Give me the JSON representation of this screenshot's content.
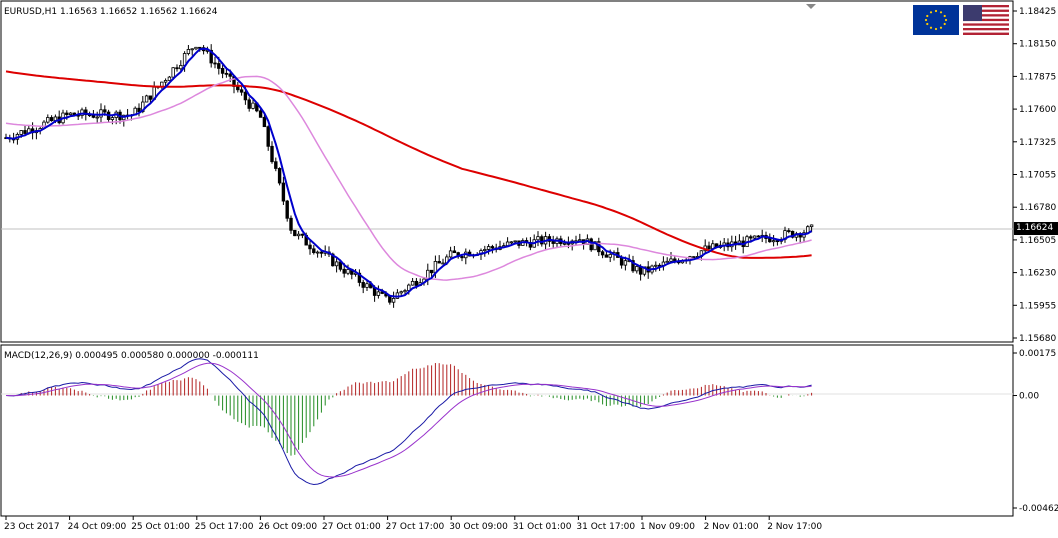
{
  "main_panel": {
    "header": "EURUSD,H1  1.16563 1.16652 1.16562 1.16624",
    "last_price": "1.16624",
    "price_axis": [
      "1.18425",
      "1.18150",
      "1.17875",
      "1.17600",
      "1.17325",
      "1.17055",
      "1.16780",
      "1.16505",
      "1.16230",
      "1.15955",
      "1.15680"
    ],
    "price_range": [
      1.1568,
      1.1852
    ]
  },
  "macd_panel": {
    "header": "MACD(12,26,9) 0.000495 0.000580 0.000000 -0.000111",
    "axis": [
      "0.00175",
      "0.00",
      "-0.004628"
    ],
    "range": [
      -0.004628,
      0.00175
    ]
  },
  "time_axis": [
    "23 Oct 2017",
    "24 Oct 09:00",
    "25 Oct 01:00",
    "25 Oct 17:00",
    "26 Oct 09:00",
    "27 Oct 01:00",
    "27 Oct 17:00",
    "30 Oct 09:00",
    "31 Oct 01:00",
    "31 Oct 17:00",
    "1 Nov 09:00",
    "2 Nov 01:00",
    "2 Nov 17:00"
  ],
  "flags": {
    "base": "EUR",
    "quote": "USD"
  },
  "colors": {
    "candles": "#000000",
    "fast_ma": "#0000cc",
    "slow_ma": "#dd0000",
    "mid_ma": "#dd88dd",
    "macd_line": "#1a1aa6",
    "signal_line": "#9933cc",
    "hist_pos": "#b22222",
    "hist_neg": "#228b22"
  },
  "chart_data": {
    "type": "candlestick",
    "symbol": "EURUSD",
    "timeframe": "H1",
    "ohlc_last": {
      "open": 1.16563,
      "high": 1.16652,
      "low": 1.16562,
      "close": 1.16624
    },
    "close_path_keypoints": [
      {
        "t": "23 Oct 2017",
        "price": 1.1742
      },
      {
        "t": "24 Oct 09:00",
        "price": 1.1762
      },
      {
        "t": "25 Oct 01:00",
        "price": 1.1762
      },
      {
        "t": "25 Oct 17:00",
        "price": 1.1825
      },
      {
        "t": "26 Oct 09:00",
        "price": 1.176
      },
      {
        "t": "26 Oct 17:00",
        "price": 1.166
      },
      {
        "t": "27 Oct 01:00",
        "price": 1.164
      },
      {
        "t": "27 Oct 17:00",
        "price": 1.16
      },
      {
        "t": "30 Oct 09:00",
        "price": 1.164
      },
      {
        "t": "31 Oct 01:00",
        "price": 1.165
      },
      {
        "t": "31 Oct 17:00",
        "price": 1.1655
      },
      {
        "t": "1 Nov 09:00",
        "price": 1.1625
      },
      {
        "t": "2 Nov 01:00",
        "price": 1.1645
      },
      {
        "t": "2 Nov 17:00",
        "price": 1.1662
      }
    ],
    "macd": {
      "params": "12,26,9",
      "main": 0.000495,
      "signal": 0.00058,
      "hist": 0.0,
      "value4": -0.000111
    }
  }
}
